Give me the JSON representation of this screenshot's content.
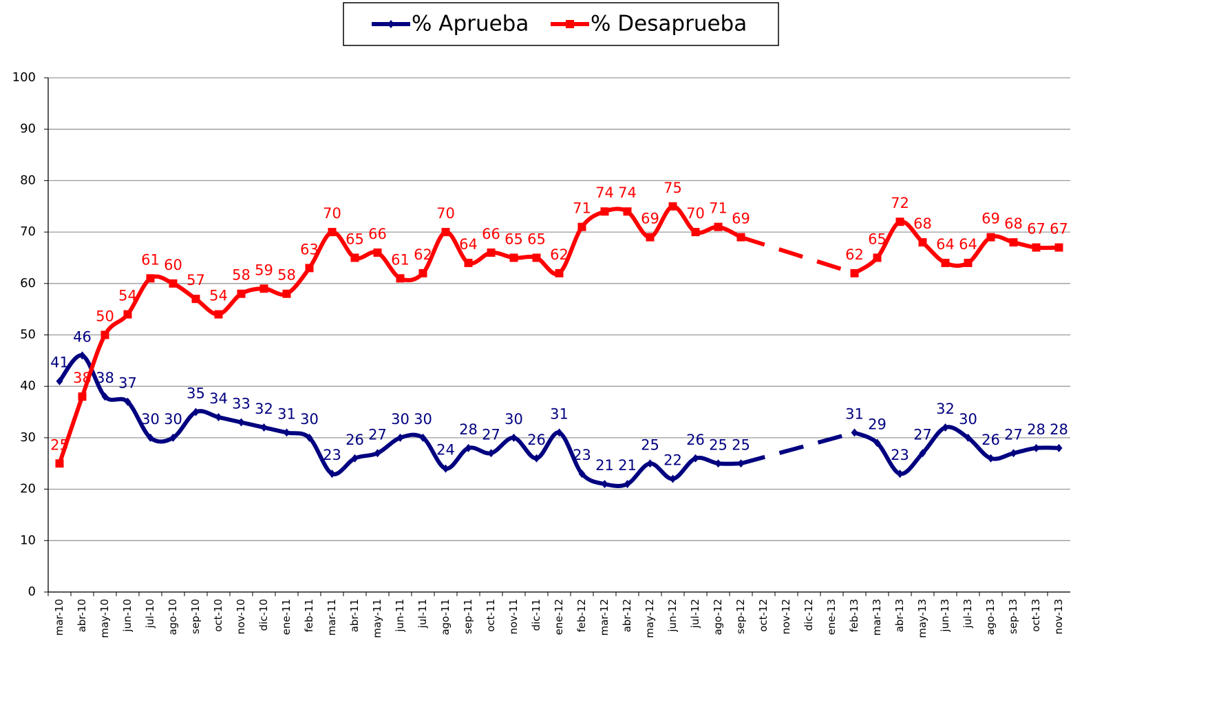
{
  "chart_data": {
    "type": "line",
    "categories": [
      "mar-10",
      "abr-10",
      "may-10",
      "jun-10",
      "jul-10",
      "ago-10",
      "sep-10",
      "oct-10",
      "nov-10",
      "dic-10",
      "ene-11",
      "feb-11",
      "mar-11",
      "abr-11",
      "may-11",
      "jun-11",
      "jul-11",
      "ago-11",
      "sep-11",
      "oct-11",
      "nov-11",
      "dic-11",
      "ene-12",
      "feb-12",
      "mar-12",
      "abr-12",
      "may-12",
      "jun-12",
      "jul-12",
      "ago-12",
      "sep-12",
      "oct-12",
      "nov-12",
      "dic-12",
      "ene-13",
      "feb-13",
      "mar-13",
      "abr-13",
      "may-13",
      "jun-13",
      "jul-13",
      "ago-13",
      "sep-13",
      "oct-13",
      "nov-13"
    ],
    "series": [
      {
        "name": "% Aprueba",
        "color": "#000080",
        "marker": "diamond",
        "values": [
          41,
          46,
          38,
          37,
          30,
          30,
          35,
          34,
          33,
          32,
          31,
          30,
          23,
          26,
          27,
          30,
          30,
          24,
          28,
          27,
          30,
          26,
          31,
          23,
          21,
          21,
          25,
          22,
          26,
          25,
          25,
          null,
          null,
          null,
          null,
          31,
          29,
          23,
          27,
          32,
          30,
          26,
          27,
          28,
          28
        ]
      },
      {
        "name": "% Desaprueba",
        "color": "#ff0000",
        "marker": "square",
        "values": [
          25,
          38,
          50,
          54,
          61,
          60,
          57,
          54,
          58,
          59,
          58,
          63,
          70,
          65,
          66,
          61,
          62,
          70,
          64,
          66,
          65,
          65,
          62,
          71,
          74,
          74,
          69,
          75,
          70,
          71,
          69,
          null,
          null,
          null,
          null,
          62,
          65,
          72,
          68,
          64,
          64,
          69,
          68,
          67,
          67
        ]
      }
    ],
    "ylim": [
      0,
      100
    ],
    "yticks": [
      0,
      10,
      20,
      30,
      40,
      50,
      60,
      70,
      80,
      90,
      100
    ],
    "grid": true,
    "legend": "top"
  }
}
